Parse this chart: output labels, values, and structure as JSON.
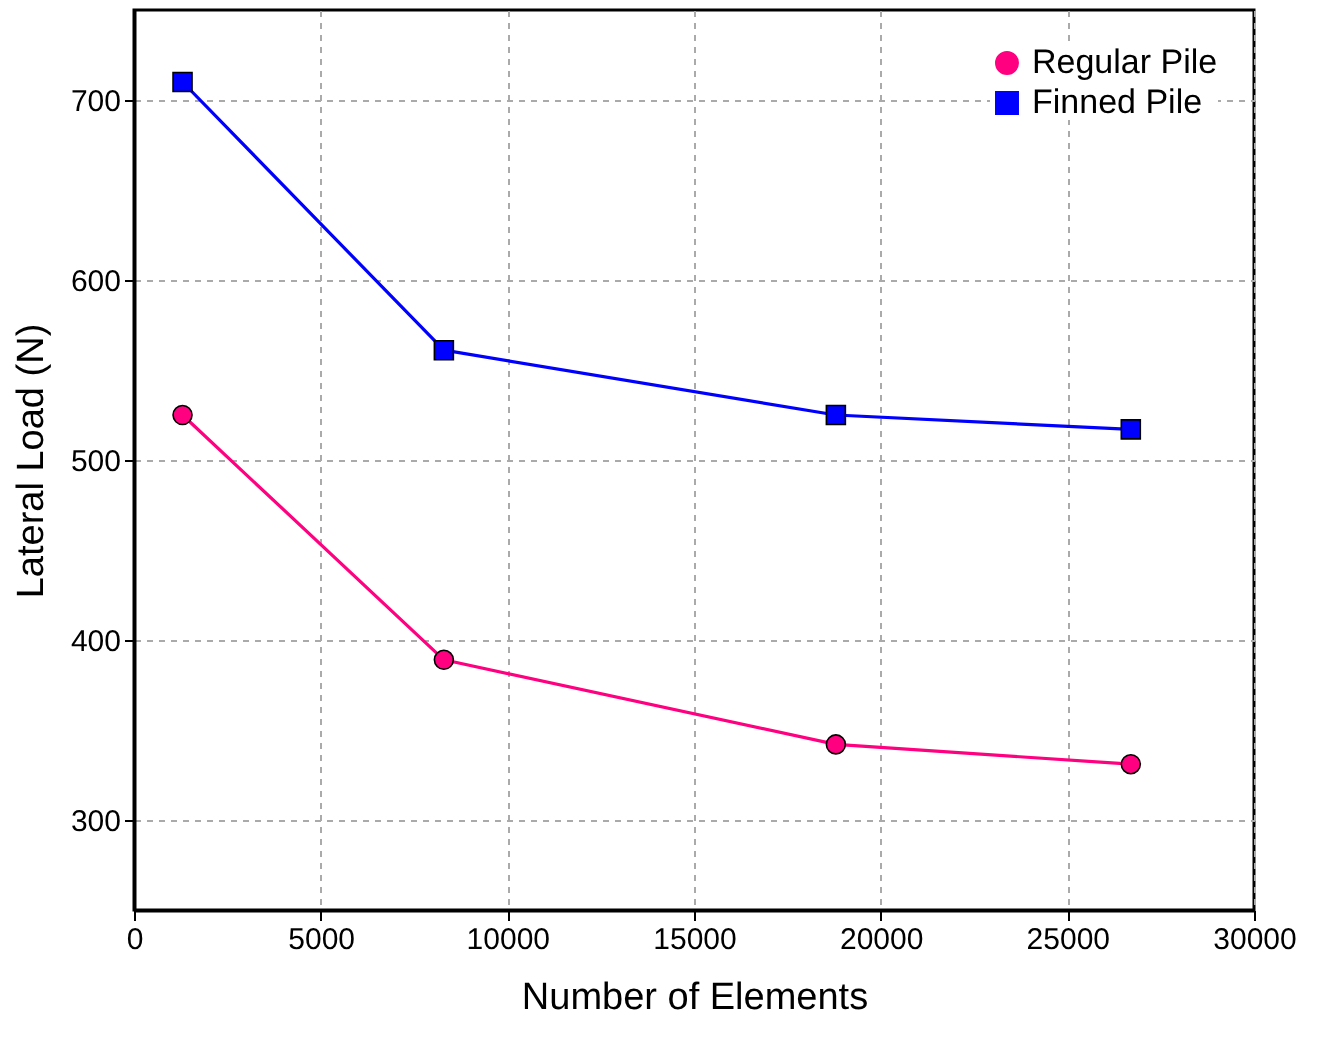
{
  "chart_data": {
    "type": "line",
    "xlabel": "Number of Elements",
    "ylabel": "Lateral Load (N)",
    "x": [
      1300,
      8300,
      18800,
      26700
    ],
    "series": [
      {
        "name": "Regular Pile",
        "color": "#ff0080",
        "values": [
          525,
          389,
          342,
          331
        ],
        "marker": "circle"
      },
      {
        "name": "Finned Pile",
        "color": "#0000ff",
        "values": [
          710,
          561,
          525,
          517
        ],
        "marker": "square"
      }
    ],
    "xlim": [
      0,
      30000
    ],
    "xticks": [
      0,
      5000,
      10000,
      15000,
      20000,
      25000,
      30000
    ],
    "ylim": [
      250,
      750
    ],
    "yticks": [
      300,
      400,
      500,
      600,
      700
    ],
    "grid": true,
    "legend": "top right",
    "line_style": "solid"
  }
}
